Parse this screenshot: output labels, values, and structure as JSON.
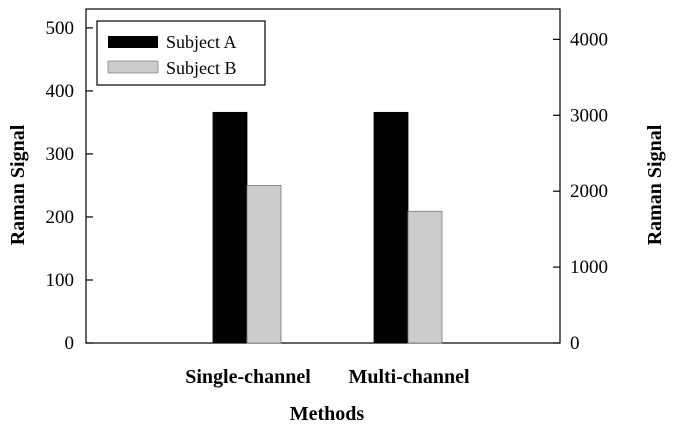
{
  "chart_data": {
    "type": "bar",
    "categories": [
      "Single-channel",
      "Multi-channel"
    ],
    "series": [
      {
        "name": "Subject A",
        "values": [
          366,
          366
        ],
        "axis": "left",
        "color": "#000000"
      },
      {
        "name": "Subject B",
        "values": [
          250,
          209
        ],
        "axis": "left",
        "color": "#cccccc"
      }
    ],
    "xlabel": "Methods",
    "ylabel": "Raman Signal",
    "ylim": [
      0,
      530
    ],
    "yticks": [
      0,
      100,
      200,
      300,
      400,
      500
    ],
    "y2label": "Raman Signal",
    "y2lim": [
      0,
      4400
    ],
    "y2ticks": [
      0,
      1000,
      2000,
      3000,
      4000
    ],
    "legend_position": "top-left",
    "grid": false
  }
}
